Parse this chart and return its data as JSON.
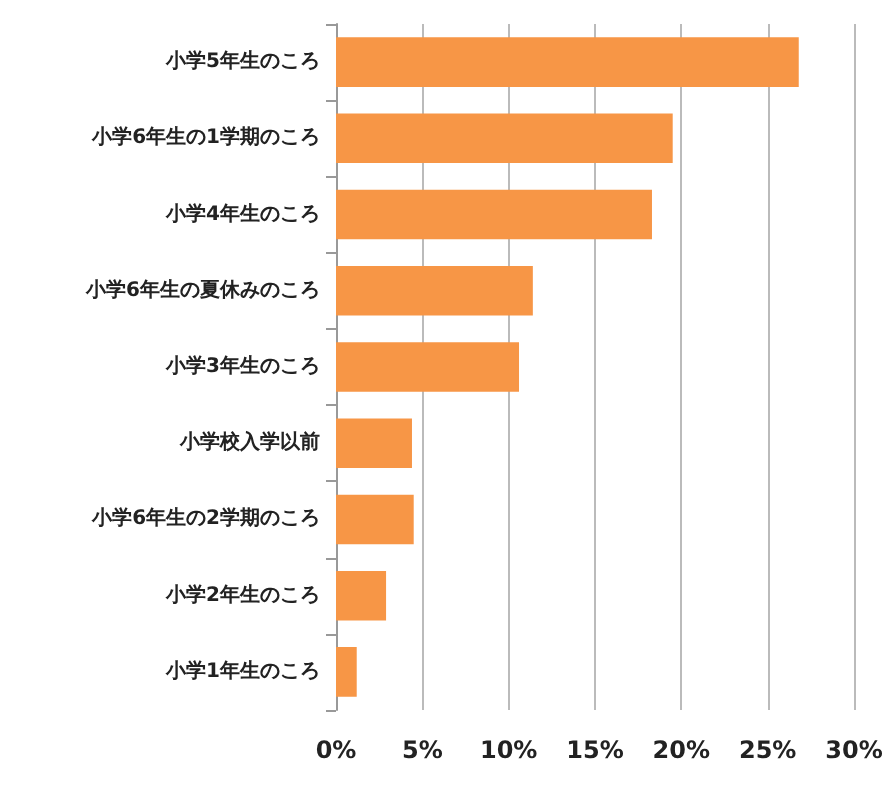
{
  "chart_data": {
    "type": "bar",
    "orientation": "horizontal",
    "categories": [
      "小学5年生のころ",
      "小学6年生の1学期のころ",
      "小学4年生のころ",
      "小学6年生の夏休みのころ",
      "小学3年生のころ",
      "小学校入学以前",
      "小学6年生の2学期のころ",
      "小学2年生のころ",
      "小学1年生のころ"
    ],
    "values": [
      26.8,
      19.5,
      18.3,
      11.4,
      10.6,
      4.4,
      4.5,
      2.9,
      1.2
    ],
    "color": "#f79646",
    "xlim": [
      0,
      30
    ],
    "xticks": [
      {
        "value": 0,
        "label": "0%"
      },
      {
        "value": 5,
        "label": "5%"
      },
      {
        "value": 10,
        "label": "10%"
      },
      {
        "value": 15,
        "label": "15%"
      },
      {
        "value": 20,
        "label": "20%"
      },
      {
        "value": 25,
        "label": "25%"
      },
      {
        "value": 30,
        "label": "30%"
      }
    ],
    "grid": "x"
  }
}
